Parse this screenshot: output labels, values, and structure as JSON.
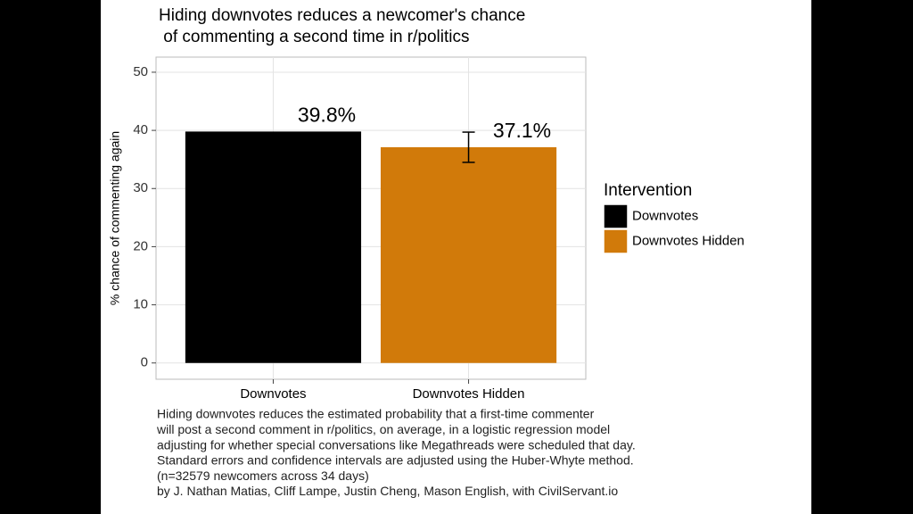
{
  "chart_data": {
    "type": "bar",
    "title": [
      "Hiding downvotes reduces a newcomer's chance",
      " of commenting a second time in r/politics"
    ],
    "y_label": "% chance of commenting again",
    "categories": [
      "Downvotes",
      "Downvotes Hidden"
    ],
    "values": [
      39.8,
      37.1
    ],
    "value_labels": [
      "39.8%",
      "37.1%"
    ],
    "errors": [
      null,
      2.6
    ],
    "colors": [
      "#000000",
      "#d17a0a"
    ],
    "ylim": [
      -2.8,
      52.6
    ],
    "yticks": [
      0,
      10,
      20,
      30,
      40,
      50
    ],
    "grid": true,
    "legend": {
      "title": "Intervention",
      "position": "right"
    },
    "caption": [
      "Hiding downvotes reduces the estimated probability that a first-time commenter",
      "will post a second comment in r/politics, on average, in a logistic regression model",
      "adjusting for whether special conversations like Megathreads were scheduled that day.",
      "Standard errors and confidence intervals are adjusted using the Huber-Whyte method.",
      "(n=32579 newcomers across 34 days)",
      "by J. Nathan Matias, Cliff Lampe, Justin Cheng, Mason English, with CivilServant.io"
    ]
  }
}
